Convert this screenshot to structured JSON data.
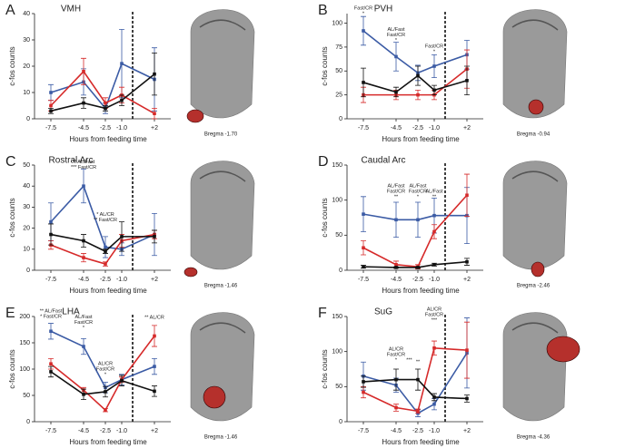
{
  "chart_data": [
    {
      "type": "line",
      "panel_label": "A",
      "title": "VMH",
      "y_label": "c-fos counts",
      "x_label": "Hours from feeding time",
      "image_caption": "Bregma -1.70",
      "x": [
        -7.5,
        -4.5,
        -2.5,
        -1,
        2
      ],
      "xlim": [
        -9,
        3.5
      ],
      "xticks": [
        -7.5,
        -4.5,
        -2.5,
        {
          "value": -1,
          "label": "-1.0"
        },
        {
          "value": 2,
          "label": "+2"
        }
      ],
      "vline": 0,
      "ylim": [
        0,
        40
      ],
      "yticks": [
        0,
        10,
        20,
        30,
        40
      ],
      "series": [
        {
          "color": "#3b5ba5",
          "values": [
            10,
            14,
            4,
            21,
            15
          ],
          "errors": [
            3,
            5,
            2,
            13,
            12
          ]
        },
        {
          "color": "#d62a2a",
          "values": [
            5,
            18,
            6,
            9,
            2
          ],
          "errors": [
            2,
            5,
            2,
            3,
            2
          ]
        },
        {
          "color": "#111111",
          "values": [
            3,
            6,
            4,
            7,
            17
          ],
          "errors": [
            1,
            2,
            1,
            2,
            8
          ]
        }
      ],
      "annotations": []
    },
    {
      "type": "line",
      "panel_label": "B",
      "title": "PVH",
      "y_label": "c-fos counts",
      "x_label": "Hours from feeding time",
      "image_caption": "Bregma -0.94",
      "x": [
        -7.5,
        -4.5,
        -2.5,
        -1,
        2
      ],
      "xlim": [
        -9,
        3.5
      ],
      "xticks": [
        -7.5,
        -4.5,
        -2.5,
        {
          "value": -1,
          "label": "-1.0"
        },
        {
          "value": 2,
          "label": "+2"
        }
      ],
      "vline": 0,
      "ylim": [
        0,
        110
      ],
      "yticks": [
        0,
        25,
        50,
        75,
        100
      ],
      "series": [
        {
          "color": "#3b5ba5",
          "values": [
            92,
            65,
            48,
            55,
            67
          ],
          "errors": [
            15,
            15,
            8,
            12,
            15
          ]
        },
        {
          "color": "#d62a2a",
          "values": [
            25,
            25,
            25,
            25,
            52
          ],
          "errors": [
            8,
            5,
            5,
            5,
            20
          ]
        },
        {
          "color": "#111111",
          "values": [
            38,
            28,
            45,
            30,
            40
          ],
          "errors": [
            15,
            5,
            10,
            5,
            15
          ]
        }
      ],
      "annotations": [
        {
          "x": -7.5,
          "y": 110,
          "lines": [
            "Fast/CR",
            "*"
          ]
        },
        {
          "x": -4.5,
          "y": 82,
          "lines": [
            "AL/Fast",
            "Fast/CR",
            "*"
          ]
        },
        {
          "x": -1,
          "y": 70,
          "lines": [
            "Fast/CR",
            "*"
          ]
        }
      ]
    },
    {
      "type": "line",
      "panel_label": "C",
      "title": "Rostral Arc",
      "y_label": "c-fos counts",
      "x_label": "Hours from feeding time",
      "image_caption": "Bregma -1.46",
      "x": [
        -7.5,
        -4.5,
        -2.5,
        -1,
        2
      ],
      "xlim": [
        -9,
        3.5
      ],
      "xticks": [
        -7.5,
        -4.5,
        -2.5,
        {
          "value": -1,
          "label": "-1.0"
        },
        {
          "value": 2,
          "label": "+2"
        }
      ],
      "vline": 0,
      "ylim": [
        0,
        50
      ],
      "yticks": [
        0,
        10,
        20,
        30,
        40,
        50
      ],
      "series": [
        {
          "color": "#3b5ba5",
          "values": [
            23,
            40,
            11,
            10,
            17
          ],
          "errors": [
            9,
            8,
            5,
            3,
            10
          ]
        },
        {
          "color": "#d62a2a",
          "values": [
            12,
            6,
            3,
            14,
            17
          ],
          "errors": [
            2,
            2,
            1,
            3,
            2
          ]
        },
        {
          "color": "#111111",
          "values": [
            17,
            14,
            9,
            16,
            16
          ],
          "errors": [
            5,
            3,
            1,
            7,
            3
          ]
        }
      ],
      "annotations": [
        {
          "x": -4.5,
          "y": 49,
          "lines": [
            "** AL/Fast",
            "*** Fast/CR"
          ]
        },
        {
          "x": -2.5,
          "y": 24,
          "lines": [
            "* AL/CR",
            "** Fast/CR"
          ]
        }
      ]
    },
    {
      "type": "line",
      "panel_label": "D",
      "title": "Caudal Arc",
      "y_label": "c-fos counts",
      "x_label": "Hours from feeding time",
      "image_caption": "Bregma -2.46",
      "x": [
        -7.5,
        -4.5,
        -2.5,
        -1,
        2
      ],
      "xlim": [
        -9,
        3.5
      ],
      "xticks": [
        -7.5,
        -4.5,
        -2.5,
        {
          "value": -1,
          "label": "-1.0"
        },
        {
          "value": 2,
          "label": "+2"
        }
      ],
      "vline": 0,
      "ylim": [
        0,
        150
      ],
      "yticks": [
        0,
        50,
        100,
        150
      ],
      "series": [
        {
          "color": "#3b5ba5",
          "values": [
            80,
            72,
            72,
            78,
            78
          ],
          "errors": [
            25,
            25,
            25,
            25,
            40
          ]
        },
        {
          "color": "#d62a2a",
          "values": [
            32,
            8,
            5,
            55,
            107
          ],
          "errors": [
            10,
            5,
            3,
            10,
            30
          ]
        },
        {
          "color": "#111111",
          "values": [
            5,
            4,
            4,
            8,
            12
          ],
          "errors": [
            2,
            1,
            1,
            2,
            5
          ]
        }
      ],
      "annotations": [
        {
          "x": -4.5,
          "y": 105,
          "lines": [
            "AL/Fast",
            "Fast/CR",
            "**"
          ]
        },
        {
          "x": -2.5,
          "y": 105,
          "lines": [
            "AL/Fast",
            "Fast/CR",
            "*"
          ]
        },
        {
          "x": -1,
          "y": 105,
          "lines": [
            "AL/Fast",
            "**"
          ]
        }
      ]
    },
    {
      "type": "line",
      "panel_label": "E",
      "title": "LHA",
      "y_label": "c-fos counts",
      "x_label": "Hours from feeding time",
      "image_caption": "Bregma -1.46",
      "x": [
        -7.5,
        -4.5,
        -2.5,
        -1,
        2
      ],
      "xlim": [
        -9,
        3.5
      ],
      "xticks": [
        -7.5,
        -4.5,
        -2.5,
        {
          "value": -1,
          "label": "-1.0"
        },
        {
          "value": 2,
          "label": "+2"
        }
      ],
      "vline": 0,
      "ylim": [
        0,
        200
      ],
      "yticks": [
        0,
        50,
        100,
        150,
        200
      ],
      "series": [
        {
          "color": "#3b5ba5",
          "values": [
            172,
            143,
            65,
            80,
            105
          ],
          "errors": [
            15,
            15,
            10,
            10,
            15
          ]
        },
        {
          "color": "#d62a2a",
          "values": [
            110,
            60,
            22,
            80,
            163
          ],
          "errors": [
            10,
            5,
            3,
            5,
            20
          ]
        },
        {
          "color": "#111111",
          "values": [
            95,
            52,
            57,
            78,
            58
          ],
          "errors": [
            10,
            10,
            10,
            10,
            10
          ]
        }
      ],
      "annotations": [
        {
          "x": -7.5,
          "y": 200,
          "lines": [
            "** AL/Fast",
            "* Fast/CR"
          ]
        },
        {
          "x": -4.5,
          "y": 178,
          "lines": [
            "AL/Fast",
            "Fast/CR",
            "*"
          ]
        },
        {
          "x": -2.5,
          "y": 90,
          "lines": [
            "AL/CR",
            "Fast/CR",
            "*"
          ]
        },
        {
          "x": 2,
          "y": 198,
          "lines": [
            "** AL/CR"
          ]
        }
      ]
    },
    {
      "type": "line",
      "panel_label": "F",
      "title": "SuG",
      "y_label": "c-fos counts",
      "x_label": "Hours from feeding time",
      "image_caption": "Bregma -4.36",
      "x": [
        -7.5,
        -4.5,
        -2.5,
        -1,
        2
      ],
      "xlim": [
        -9,
        3.5
      ],
      "xticks": [
        -7.5,
        -4.5,
        -2.5,
        {
          "value": -1,
          "label": "-1.0"
        },
        {
          "value": 2,
          "label": "+2"
        }
      ],
      "vline": 0,
      "ylim": [
        0,
        150
      ],
      "yticks": [
        0,
        50,
        100,
        150
      ],
      "series": [
        {
          "color": "#3b5ba5",
          "values": [
            65,
            52,
            12,
            25,
            98
          ],
          "errors": [
            20,
            10,
            5,
            8,
            50
          ]
        },
        {
          "color": "#d62a2a",
          "values": [
            42,
            20,
            15,
            105,
            102
          ],
          "errors": [
            8,
            5,
            3,
            10,
            40
          ]
        },
        {
          "color": "#111111",
          "values": [
            57,
            60,
            60,
            35,
            33
          ],
          "errors": [
            8,
            15,
            15,
            5,
            5
          ]
        }
      ],
      "annotations": [
        {
          "x": -4.5,
          "y": 88,
          "lines": [
            "AL/CR",
            "Fast/CR",
            "*"
          ]
        },
        {
          "x": -3.3,
          "y": 88,
          "lines": [
            "***"
          ]
        },
        {
          "x": -2.5,
          "y": 85,
          "lines": [
            "**"
          ]
        },
        {
          "x": -1,
          "y": 145,
          "lines": [
            "AL/CR",
            "Fast/CR",
            "***"
          ]
        }
      ]
    }
  ]
}
